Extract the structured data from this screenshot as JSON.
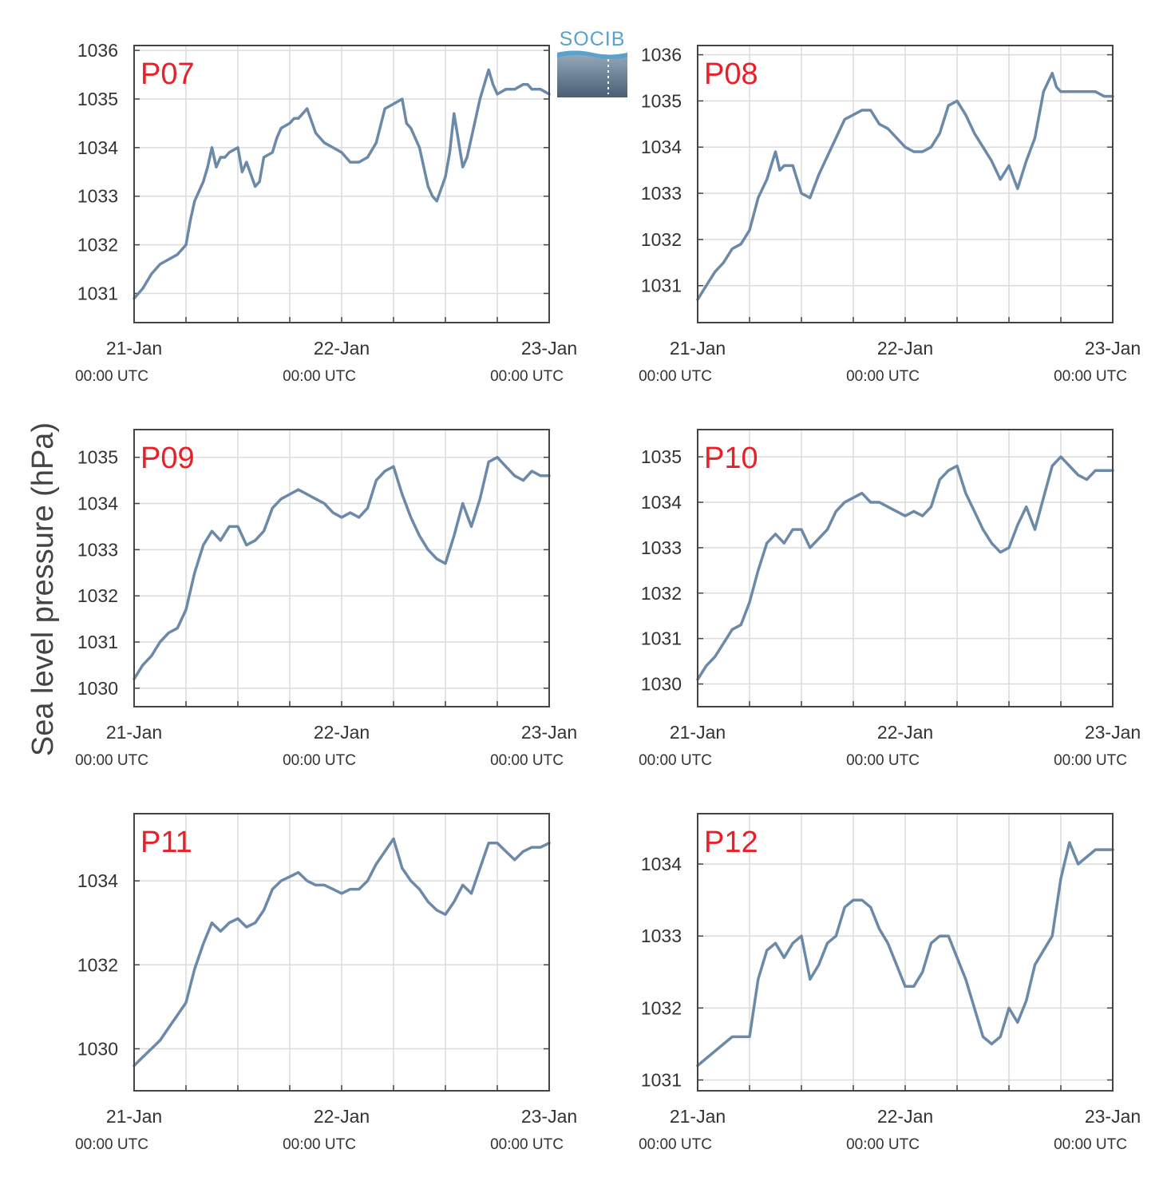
{
  "figure": {
    "ylabel": "Sea level pressure (hPa)",
    "logo_text": "SOCIB",
    "colors": {
      "line": "#6b89a8",
      "label": "#e8202a",
      "grid": "#dcdcdc",
      "axis": "#444444"
    }
  },
  "chart_data": [
    {
      "type": "line",
      "label": "P07",
      "ylim": [
        1030.4,
        1036.1
      ],
      "yticks": [
        1031,
        1032,
        1033,
        1034,
        1035,
        1036
      ],
      "xlim": [
        0,
        48
      ],
      "xticks": [
        {
          "value": 0,
          "label": "21-Jan",
          "sub": "00:00 UTC"
        },
        {
          "value": 24,
          "label": "22-Jan",
          "sub": "00:00 UTC"
        },
        {
          "value": 48,
          "label": "23-Jan",
          "sub": "00:00 UTC"
        }
      ],
      "grid": true,
      "x": [
        0,
        1,
        2,
        3,
        4,
        5,
        6,
        6.5,
        7,
        7.5,
        8,
        8.5,
        9,
        9.5,
        10,
        10.5,
        11,
        12,
        12.5,
        13,
        14,
        14.5,
        15,
        16,
        16.5,
        17,
        18,
        18.5,
        19,
        20,
        21,
        22,
        23,
        24,
        25,
        26,
        27,
        28,
        29,
        30,
        31,
        31.5,
        32,
        33,
        33.5,
        34,
        34.5,
        35,
        36,
        36.5,
        37,
        38,
        38.5,
        39,
        40,
        41,
        41.5,
        42,
        43,
        44,
        45,
        45.5,
        46,
        47,
        48
      ],
      "y": [
        1030.9,
        1031.1,
        1031.4,
        1031.6,
        1031.7,
        1031.8,
        1032.0,
        1032.5,
        1032.9,
        1033.1,
        1033.3,
        1033.6,
        1034.0,
        1033.6,
        1033.8,
        1033.8,
        1033.9,
        1034.0,
        1033.5,
        1033.7,
        1033.2,
        1033.3,
        1033.8,
        1033.9,
        1034.2,
        1034.4,
        1034.5,
        1034.6,
        1034.6,
        1034.8,
        1034.3,
        1034.1,
        1034.0,
        1033.9,
        1033.7,
        1033.7,
        1033.8,
        1034.1,
        1034.8,
        1034.9,
        1035.0,
        1034.5,
        1034.4,
        1034.0,
        1033.6,
        1033.2,
        1033.0,
        1032.9,
        1033.4,
        1033.9,
        1034.7,
        1033.6,
        1033.8,
        1034.2,
        1035.0,
        1035.6,
        1035.3,
        1035.1,
        1035.2,
        1035.2,
        1035.3,
        1035.3,
        1035.2,
        1035.2,
        1035.1
      ]
    },
    {
      "type": "line",
      "label": "P08",
      "ylim": [
        1030.2,
        1036.2
      ],
      "yticks": [
        1031,
        1032,
        1033,
        1034,
        1035,
        1036
      ],
      "xlim": [
        0,
        48
      ],
      "xticks": [
        {
          "value": 0,
          "label": "21-Jan",
          "sub": "00:00 UTC"
        },
        {
          "value": 24,
          "label": "22-Jan",
          "sub": "00:00 UTC"
        },
        {
          "value": 48,
          "label": "23-Jan",
          "sub": "00:00 UTC"
        }
      ],
      "grid": true,
      "x": [
        0,
        1,
        2,
        3,
        4,
        5,
        6,
        7,
        8,
        8.5,
        9,
        9.5,
        10,
        11,
        11.5,
        12,
        13,
        14,
        15,
        16,
        17,
        18,
        19,
        20,
        21,
        22,
        23,
        24,
        25,
        26,
        27,
        28,
        29,
        30,
        31,
        32,
        33,
        34,
        35,
        36,
        37,
        38,
        39,
        40,
        41,
        41.5,
        42,
        43,
        44,
        45,
        45.5,
        46,
        47,
        48
      ],
      "y": [
        1030.7,
        1031.0,
        1031.3,
        1031.5,
        1031.8,
        1031.9,
        1032.2,
        1032.9,
        1033.3,
        1033.6,
        1033.9,
        1033.5,
        1033.6,
        1033.6,
        1033.3,
        1033.0,
        1032.9,
        1033.4,
        1033.8,
        1034.2,
        1034.6,
        1034.7,
        1034.8,
        1034.8,
        1034.5,
        1034.4,
        1034.2,
        1034.0,
        1033.9,
        1033.9,
        1034.0,
        1034.3,
        1034.9,
        1035.0,
        1034.7,
        1034.3,
        1034.0,
        1033.7,
        1033.3,
        1033.6,
        1033.1,
        1033.7,
        1034.2,
        1035.2,
        1035.6,
        1035.3,
        1035.2,
        1035.2,
        1035.2,
        1035.2,
        1035.2,
        1035.2,
        1035.1,
        1035.1
      ]
    },
    {
      "type": "line",
      "label": "P09",
      "ylim": [
        1029.6,
        1035.6
      ],
      "yticks": [
        1030,
        1031,
        1032,
        1033,
        1034,
        1035
      ],
      "xlim": [
        0,
        48
      ],
      "xticks": [
        {
          "value": 0,
          "label": "21-Jan",
          "sub": "00:00 UTC"
        },
        {
          "value": 24,
          "label": "22-Jan",
          "sub": "00:00 UTC"
        },
        {
          "value": 48,
          "label": "23-Jan",
          "sub": "00:00 UTC"
        }
      ],
      "grid": true,
      "x": [
        0,
        1,
        2,
        3,
        4,
        5,
        6,
        7,
        8,
        9,
        10,
        11,
        12,
        13,
        14,
        15,
        16,
        17,
        18,
        19,
        20,
        21,
        22,
        23,
        24,
        25,
        26,
        27,
        28,
        29,
        30,
        31,
        32,
        33,
        34,
        35,
        36,
        37,
        38,
        39,
        40,
        41,
        42,
        43,
        44,
        45,
        46,
        47,
        48
      ],
      "y": [
        1030.2,
        1030.5,
        1030.7,
        1031.0,
        1031.2,
        1031.3,
        1031.7,
        1032.5,
        1033.1,
        1033.4,
        1033.2,
        1033.5,
        1033.5,
        1033.1,
        1033.2,
        1033.4,
        1033.9,
        1034.1,
        1034.2,
        1034.3,
        1034.2,
        1034.1,
        1034.0,
        1033.8,
        1033.7,
        1033.8,
        1033.7,
        1033.9,
        1034.5,
        1034.7,
        1034.8,
        1034.2,
        1033.7,
        1033.3,
        1033.0,
        1032.8,
        1032.7,
        1033.3,
        1034.0,
        1033.5,
        1034.1,
        1034.9,
        1035.0,
        1034.8,
        1034.6,
        1034.5,
        1034.7,
        1034.6,
        1034.6
      ]
    },
    {
      "type": "line",
      "label": "P10",
      "ylim": [
        1029.5,
        1035.6
      ],
      "yticks": [
        1030,
        1031,
        1032,
        1033,
        1034,
        1035
      ],
      "xlim": [
        0,
        48
      ],
      "xticks": [
        {
          "value": 0,
          "label": "21-Jan",
          "sub": "00:00 UTC"
        },
        {
          "value": 24,
          "label": "22-Jan",
          "sub": "00:00 UTC"
        },
        {
          "value": 48,
          "label": "23-Jan",
          "sub": "00:00 UTC"
        }
      ],
      "grid": true,
      "x": [
        0,
        1,
        2,
        3,
        4,
        5,
        6,
        7,
        8,
        9,
        10,
        11,
        12,
        13,
        14,
        15,
        16,
        17,
        18,
        19,
        20,
        21,
        22,
        23,
        24,
        25,
        26,
        27,
        28,
        29,
        30,
        31,
        32,
        33,
        34,
        35,
        36,
        37,
        38,
        39,
        40,
        41,
        42,
        43,
        44,
        45,
        46,
        47,
        48
      ],
      "y": [
        1030.1,
        1030.4,
        1030.6,
        1030.9,
        1031.2,
        1031.3,
        1031.8,
        1032.5,
        1033.1,
        1033.3,
        1033.1,
        1033.4,
        1033.4,
        1033.0,
        1033.2,
        1033.4,
        1033.8,
        1034.0,
        1034.1,
        1034.2,
        1034.0,
        1034.0,
        1033.9,
        1033.8,
        1033.7,
        1033.8,
        1033.7,
        1033.9,
        1034.5,
        1034.7,
        1034.8,
        1034.2,
        1033.8,
        1033.4,
        1033.1,
        1032.9,
        1033.0,
        1033.5,
        1033.9,
        1033.4,
        1034.1,
        1034.8,
        1035.0,
        1034.8,
        1034.6,
        1034.5,
        1034.7,
        1034.7,
        1034.7
      ]
    },
    {
      "type": "line",
      "label": "P11",
      "ylim": [
        1029,
        1035.6
      ],
      "yticks": [
        1030,
        1032,
        1034
      ],
      "xlim": [
        0,
        48
      ],
      "xticks": [
        {
          "value": 0,
          "label": "21-Jan",
          "sub": "00:00 UTC"
        },
        {
          "value": 24,
          "label": "22-Jan",
          "sub": "00:00 UTC"
        },
        {
          "value": 48,
          "label": "23-Jan",
          "sub": "00:00 UTC"
        }
      ],
      "grid": true,
      "x": [
        0,
        1,
        2,
        3,
        4,
        5,
        6,
        7,
        8,
        9,
        10,
        11,
        12,
        13,
        14,
        15,
        16,
        17,
        18,
        19,
        20,
        21,
        22,
        23,
        24,
        25,
        26,
        27,
        28,
        29,
        30,
        31,
        32,
        33,
        34,
        35,
        36,
        37,
        38,
        39,
        40,
        41,
        42,
        43,
        44,
        45,
        46,
        47,
        48
      ],
      "y": [
        1029.6,
        1029.8,
        1030.0,
        1030.2,
        1030.5,
        1030.8,
        1031.1,
        1031.9,
        1032.5,
        1033.0,
        1032.8,
        1033.0,
        1033.1,
        1032.9,
        1033.0,
        1033.3,
        1033.8,
        1034.0,
        1034.1,
        1034.2,
        1034.0,
        1033.9,
        1033.9,
        1033.8,
        1033.7,
        1033.8,
        1033.8,
        1034.0,
        1034.4,
        1034.7,
        1035.0,
        1034.3,
        1034.0,
        1033.8,
        1033.5,
        1033.3,
        1033.2,
        1033.5,
        1033.9,
        1033.7,
        1034.3,
        1034.9,
        1034.9,
        1034.7,
        1034.5,
        1034.7,
        1034.8,
        1034.8,
        1034.9
      ]
    },
    {
      "type": "line",
      "label": "P12",
      "ylim": [
        1030.85,
        1034.7
      ],
      "yticks": [
        1031,
        1032,
        1033,
        1034
      ],
      "xlim": [
        0,
        48
      ],
      "xticks": [
        {
          "value": 0,
          "label": "21-Jan",
          "sub": "00:00 UTC"
        },
        {
          "value": 24,
          "label": "22-Jan",
          "sub": "00:00 UTC"
        },
        {
          "value": 48,
          "label": "23-Jan",
          "sub": "00:00 UTC"
        }
      ],
      "grid": true,
      "x": [
        0,
        1,
        2,
        3,
        4,
        5,
        6,
        7,
        8,
        9,
        10,
        11,
        12,
        13,
        14,
        15,
        16,
        17,
        18,
        19,
        20,
        21,
        22,
        23,
        24,
        25,
        26,
        27,
        28,
        29,
        30,
        31,
        32,
        33,
        34,
        35,
        36,
        37,
        38,
        39,
        40,
        41,
        42,
        43,
        44,
        45,
        46,
        47,
        48
      ],
      "y": [
        1031.2,
        1031.3,
        1031.4,
        1031.5,
        1031.6,
        1031.6,
        1031.6,
        1032.4,
        1032.8,
        1032.9,
        1032.7,
        1032.9,
        1033.0,
        1032.4,
        1032.6,
        1032.9,
        1033.0,
        1033.4,
        1033.5,
        1033.5,
        1033.4,
        1033.1,
        1032.9,
        1032.6,
        1032.3,
        1032.3,
        1032.5,
        1032.9,
        1033.0,
        1033.0,
        1032.7,
        1032.4,
        1032.0,
        1031.6,
        1031.5,
        1031.6,
        1032.0,
        1031.8,
        1032.1,
        1032.6,
        1032.8,
        1033.0,
        1033.8,
        1034.3,
        1034.0,
        1034.1,
        1034.2,
        1034.2,
        1034.2
      ]
    }
  ]
}
